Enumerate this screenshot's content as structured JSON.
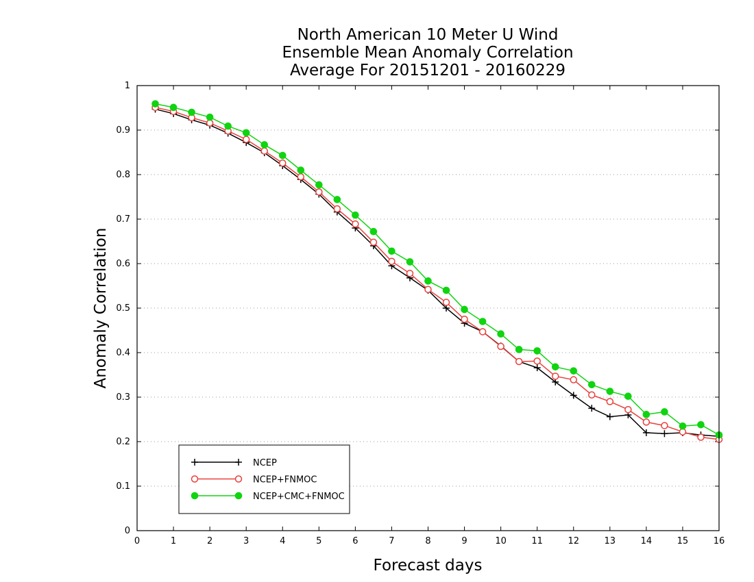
{
  "chart_data": {
    "type": "line",
    "title_lines": [
      "North American 10 Meter U Wind",
      "Ensemble Mean Anomaly Correlation",
      "Average For 20151201 - 20160229"
    ],
    "xlabel": "Forecast days",
    "ylabel": "Anomaly Correlation",
    "xlim": [
      0,
      16
    ],
    "ylim": [
      0,
      1
    ],
    "xticks": [
      "0",
      "1",
      "2",
      "3",
      "4",
      "5",
      "6",
      "7",
      "8",
      "9",
      "10",
      "11",
      "12",
      "13",
      "14",
      "15",
      "16"
    ],
    "yticks": [
      "0",
      "0.1",
      "0.2",
      "0.3",
      "0.4",
      "0.5",
      "0.6",
      "0.7",
      "0.8",
      "0.9",
      "1"
    ],
    "grid": "horizontal dotted",
    "legend_position": "bottom-left",
    "x": [
      0.5,
      1,
      1.5,
      2,
      2.5,
      3,
      3.5,
      4,
      4.5,
      5,
      5.5,
      6,
      6.5,
      7,
      7.5,
      8,
      8.5,
      9,
      9.5,
      10,
      10.5,
      11,
      11.5,
      12,
      12.5,
      13,
      13.5,
      14,
      14.5,
      15,
      15.5,
      16
    ],
    "series": [
      {
        "name": "NCEP",
        "color": "#000000",
        "marker": "plus",
        "values": [
          0.947,
          0.937,
          0.923,
          0.911,
          0.893,
          0.872,
          0.849,
          0.82,
          0.789,
          0.756,
          0.716,
          0.68,
          0.64,
          0.595,
          0.568,
          0.54,
          0.5,
          0.466,
          0.447,
          0.415,
          0.38,
          0.366,
          0.334,
          0.304,
          0.275,
          0.256,
          0.26,
          0.22,
          0.218,
          0.22,
          0.215,
          0.212
        ]
      },
      {
        "name": "NCEP+FNMOC",
        "color": "#e8403c",
        "marker": "open-circle",
        "values": [
          0.951,
          0.942,
          0.928,
          0.916,
          0.898,
          0.879,
          0.853,
          0.826,
          0.795,
          0.761,
          0.723,
          0.689,
          0.648,
          0.605,
          0.578,
          0.542,
          0.513,
          0.475,
          0.447,
          0.414,
          0.38,
          0.381,
          0.347,
          0.339,
          0.305,
          0.29,
          0.272,
          0.244,
          0.236,
          0.222,
          0.21,
          0.205
        ]
      },
      {
        "name": "NCEP+CMC+FNMOC",
        "color": "#10d410",
        "marker": "filled-circle",
        "values": [
          0.959,
          0.951,
          0.94,
          0.929,
          0.909,
          0.894,
          0.867,
          0.843,
          0.81,
          0.777,
          0.744,
          0.709,
          0.672,
          0.628,
          0.604,
          0.561,
          0.54,
          0.497,
          0.47,
          0.442,
          0.407,
          0.404,
          0.368,
          0.359,
          0.328,
          0.313,
          0.302,
          0.261,
          0.267,
          0.235,
          0.238,
          0.215
        ]
      }
    ]
  }
}
